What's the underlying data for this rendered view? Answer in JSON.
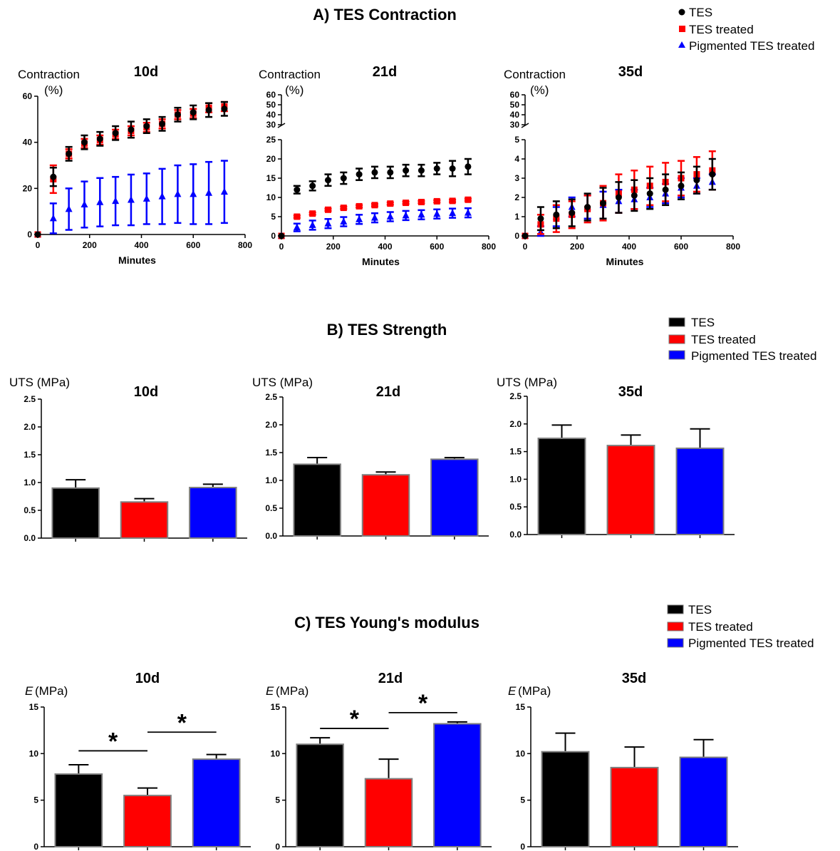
{
  "sections": {
    "contraction": {
      "title": "A) TES Contraction"
    },
    "strength": {
      "title": "B) TES Strength"
    },
    "modulus": {
      "title": "C) TES Young's modulus"
    }
  },
  "legend": {
    "series_names": [
      "TES",
      "TES treated",
      "Pigmented TES treated"
    ],
    "colors": [
      "#000000",
      "#ff0000",
      "#0000ff"
    ]
  },
  "chart_data": [
    {
      "id": "contraction-10d",
      "type": "scatter",
      "title": "10d",
      "ylabel": "Contraction",
      "ylabel2": "(%)",
      "xlabel": "Minutes",
      "xlim": [
        0,
        800
      ],
      "ylim": [
        0,
        60
      ],
      "yticks": [
        0,
        20,
        40,
        60
      ],
      "xticks": [
        0,
        200,
        400,
        600,
        800
      ],
      "x": [
        0,
        60,
        120,
        180,
        240,
        300,
        360,
        420,
        480,
        540,
        600,
        660,
        720
      ],
      "series": [
        {
          "name": "TES",
          "values": [
            0,
            25,
            35,
            40,
            41.5,
            44,
            45.5,
            47,
            48,
            52,
            53,
            54,
            54.5
          ],
          "errors": [
            0,
            4,
            3,
            3,
            3,
            3,
            3.5,
            3,
            3,
            3,
            3,
            3,
            3
          ]
        },
        {
          "name": "TES treated",
          "values": [
            0,
            24,
            35,
            39.5,
            41,
            43.5,
            45,
            46.5,
            48,
            52,
            52.5,
            55,
            55.5
          ],
          "errors": [
            0,
            6,
            2,
            2,
            2,
            2,
            2,
            2,
            2,
            2,
            2,
            2,
            2
          ]
        },
        {
          "name": "Pigmented TES treated",
          "values": [
            0,
            7,
            11,
            13,
            14,
            14.5,
            15,
            15.5,
            16.5,
            17.5,
            17.5,
            18,
            18.5
          ],
          "errors": [
            0,
            6.5,
            9,
            10,
            10.5,
            10.5,
            11,
            11,
            12,
            12.5,
            13,
            13.5,
            13.5
          ]
        }
      ]
    },
    {
      "id": "contraction-21d",
      "type": "scatter",
      "title": "21d",
      "ylabel": "Contraction",
      "ylabel2": "(%)",
      "xlabel": "Minutes",
      "xlim": [
        0,
        800
      ],
      "ylim": [
        0,
        25
      ],
      "broken_axis_upper_ticks": [
        30,
        40,
        50,
        60
      ],
      "yticks": [
        0,
        5,
        10,
        15,
        20,
        25
      ],
      "xticks": [
        0,
        200,
        400,
        600,
        800
      ],
      "x": [
        0,
        60,
        120,
        180,
        240,
        300,
        360,
        420,
        480,
        540,
        600,
        660,
        720
      ],
      "series": [
        {
          "name": "TES",
          "values": [
            0,
            12,
            13,
            14.5,
            15,
            16,
            16.5,
            16.5,
            17,
            17,
            17.5,
            17.5,
            18
          ],
          "errors": [
            0,
            1,
            1.2,
            1.5,
            1.5,
            1.5,
            1.5,
            1.5,
            1.5,
            1.5,
            1.5,
            2,
            2
          ]
        },
        {
          "name": "TES treated",
          "values": [
            0,
            5,
            5.8,
            6.8,
            7.3,
            7.7,
            8,
            8.4,
            8.6,
            8.8,
            9,
            9.1,
            9.4
          ],
          "errors": [
            0,
            0.3,
            0.3,
            0.3,
            0.3,
            0.3,
            0.3,
            0.3,
            0.3,
            0.3,
            0.3,
            0.3,
            0.3
          ]
        },
        {
          "name": "Pigmented TES treated",
          "values": [
            0,
            2.2,
            2.8,
            3.2,
            3.7,
            4.3,
            4.7,
            5,
            5.3,
            5.5,
            5.7,
            5.9,
            6
          ],
          "errors": [
            0,
            1,
            1.2,
            1.2,
            1.2,
            1.2,
            1.2,
            1.2,
            1.2,
            1.2,
            1.2,
            1.2,
            1.2
          ]
        }
      ]
    },
    {
      "id": "contraction-35d",
      "type": "scatter",
      "title": "35d",
      "ylabel": "Contraction",
      "ylabel2": "(%)",
      "xlabel": "Minutes",
      "xlim": [
        0,
        800
      ],
      "ylim": [
        0,
        5
      ],
      "broken_axis_upper_ticks": [
        30,
        40,
        50,
        60
      ],
      "yticks": [
        0,
        1,
        2,
        3,
        4,
        5
      ],
      "xticks": [
        0,
        200,
        400,
        600,
        800
      ],
      "x": [
        0,
        60,
        120,
        180,
        240,
        300,
        360,
        420,
        480,
        540,
        600,
        660,
        720
      ],
      "series": [
        {
          "name": "TES",
          "values": [
            0,
            0.9,
            1.1,
            1.2,
            1.5,
            1.7,
            2,
            2.1,
            2.2,
            2.4,
            2.6,
            2.9,
            3.2
          ],
          "errors": [
            0,
            0.6,
            0.7,
            0.7,
            0.7,
            0.8,
            0.8,
            0.8,
            0.8,
            0.8,
            0.7,
            0.7,
            0.8
          ]
        },
        {
          "name": "TES treated",
          "values": [
            0,
            0.6,
            0.9,
            1.1,
            1.4,
            1.7,
            2.2,
            2.4,
            2.6,
            2.8,
            3,
            3.2,
            3.4
          ],
          "errors": [
            0,
            0.5,
            0.7,
            0.7,
            0.7,
            0.9,
            1,
            1,
            1,
            1,
            0.9,
            0.9,
            1
          ]
        },
        {
          "name": "Pigmented TES treated",
          "values": [
            0,
            0.2,
            1,
            1.5,
            1.5,
            1.6,
            1.8,
            1.9,
            2,
            2.2,
            2.5,
            2.6,
            2.8
          ],
          "errors": [
            0,
            0.3,
            0.5,
            0.5,
            0.6,
            0.7,
            0.6,
            0.5,
            0.5,
            0.5,
            0.5,
            0.4,
            0.4
          ]
        }
      ]
    },
    {
      "id": "uts-10d",
      "type": "bar",
      "title": "10d",
      "ylabel": "UTS (MPa)",
      "ylim": [
        0,
        2.5
      ],
      "yticks": [
        "0.0",
        "0.5",
        "1.0",
        "1.5",
        "2.0",
        "2.5"
      ],
      "categories": [
        "TES",
        "TES treated",
        "Pigmented TES treated"
      ],
      "values": [
        0.9,
        0.65,
        0.91
      ],
      "errors": [
        0.15,
        0.06,
        0.06
      ]
    },
    {
      "id": "uts-21d",
      "type": "bar",
      "title": "21d",
      "ylabel": "UTS (MPa)",
      "ylim": [
        0,
        2.5
      ],
      "yticks": [
        "0.0",
        "0.5",
        "1.0",
        "1.5",
        "2.0",
        "2.5"
      ],
      "categories": [
        "TES",
        "TES treated",
        "Pigmented TES treated"
      ],
      "values": [
        1.29,
        1.1,
        1.38
      ],
      "errors": [
        0.12,
        0.05,
        0.03
      ]
    },
    {
      "id": "uts-35d",
      "type": "bar",
      "title": "35d",
      "ylabel": "UTS (MPa)",
      "ylim": [
        0,
        2.5
      ],
      "yticks": [
        "0.0",
        "0.5",
        "1.0",
        "1.5",
        "2.0",
        "2.5"
      ],
      "categories": [
        "TES",
        "TES treated",
        "Pigmented TES treated"
      ],
      "values": [
        1.74,
        1.61,
        1.56
      ],
      "errors": [
        0.24,
        0.19,
        0.35
      ]
    },
    {
      "id": "modulus-10d",
      "type": "bar",
      "title": "10d",
      "ylabel": "E",
      "ylabel_unit": "(MPa)",
      "ylim": [
        0,
        15
      ],
      "yticks": [
        "0",
        "5",
        "10",
        "15"
      ],
      "categories": [
        "TES",
        "TES treated",
        "Pigmented TES treated"
      ],
      "values": [
        7.8,
        5.5,
        9.4
      ],
      "errors": [
        1,
        0.8,
        0.5
      ],
      "significance": [
        {
          "from": 0,
          "to": 1,
          "level": 10.3,
          "label": "*"
        },
        {
          "from": 1,
          "to": 2,
          "level": 12.3,
          "label": "*"
        }
      ]
    },
    {
      "id": "modulus-21d",
      "type": "bar",
      "title": "21d",
      "ylabel": "E",
      "ylabel_unit": "(MPa)",
      "ylim": [
        0,
        15
      ],
      "yticks": [
        "0",
        "5",
        "10",
        "15"
      ],
      "categories": [
        "TES",
        "TES treated",
        "Pigmented TES treated"
      ],
      "values": [
        11,
        7.3,
        13.2
      ],
      "errors": [
        0.7,
        2.1,
        0.2
      ],
      "significance": [
        {
          "from": 0,
          "to": 1,
          "level": 12.7,
          "label": "*"
        },
        {
          "from": 1,
          "to": 2,
          "level": 14.4,
          "label": "*"
        }
      ]
    },
    {
      "id": "modulus-35d",
      "type": "bar",
      "title": "35d",
      "ylabel": "E",
      "ylabel_unit": "(MPa)",
      "ylim": [
        0,
        15
      ],
      "yticks": [
        "0",
        "5",
        "10",
        "15"
      ],
      "categories": [
        "TES",
        "TES treated",
        "Pigmented TES treated"
      ],
      "values": [
        10.2,
        8.5,
        9.6
      ],
      "errors": [
        2,
        2.2,
        1.9
      ]
    }
  ]
}
